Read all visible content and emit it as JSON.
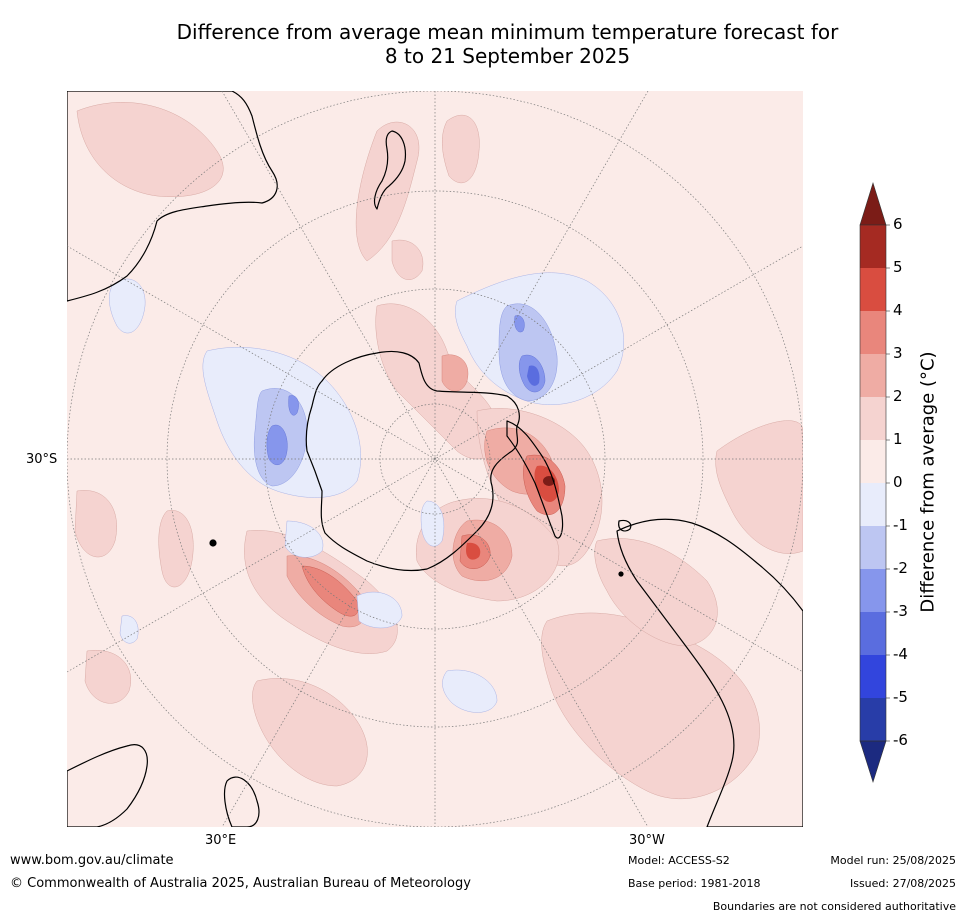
{
  "title": {
    "line1": "Difference from average mean minimum temperature forecast for",
    "line2": "8 to 21 September 2025"
  },
  "map": {
    "projection": "south-polar-stereographic",
    "labels": {
      "lat_30s": "30°S",
      "lon_30e": "30°E",
      "lon_30w": "30°W"
    },
    "colors": {
      "background": "#fbebe8",
      "land_outline": "#000000",
      "graticule": "#7a7a7a"
    }
  },
  "colorbar": {
    "title": "Difference from average (°C)",
    "ticks": [
      "6",
      "5",
      "4",
      "3",
      "2",
      "1",
      "0",
      "-1",
      "-2",
      "-3",
      "-4",
      "-5",
      "-6"
    ],
    "colors_top_to_bottom": [
      "#7b1c17",
      "#a52a22",
      "#d94d40",
      "#e9867c",
      "#efaca4",
      "#f5d3d0",
      "#fbebe8",
      "#e8ecfb",
      "#bdc6f2",
      "#8696ec",
      "#5a6ddf",
      "#3245dd",
      "#283da8",
      "#1c2a80"
    ]
  },
  "footer": {
    "website": "www.bom.gov.au/climate",
    "copyright": "© Commonwealth of Australia 2025, Australian Bureau of Meteorology",
    "model": "Model: ACCESS-S2",
    "base_period": "Base period: 1981-2018",
    "model_run": "Model run: 25/08/2025",
    "issued": "Issued: 27/08/2025",
    "disclaimer": "Boundaries are not considered authoritative"
  }
}
